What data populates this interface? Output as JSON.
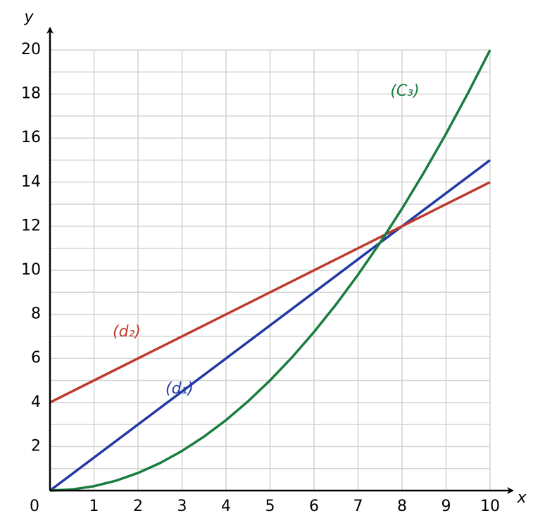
{
  "chart_data": {
    "type": "line",
    "x_label": "x",
    "y_label": "y",
    "xlim": [
      0,
      10
    ],
    "ylim": [
      0,
      20
    ],
    "xticks": [
      0,
      1,
      2,
      3,
      4,
      5,
      6,
      7,
      8,
      9,
      10
    ],
    "yticks": [
      2,
      4,
      6,
      8,
      10,
      12,
      14,
      16,
      18,
      20
    ],
    "y_minor_ticks": [
      1,
      3,
      5,
      7,
      9,
      11,
      13,
      15,
      17,
      19
    ],
    "grid": true,
    "series": [
      {
        "name": "(d₁)",
        "color": "#2139a5",
        "x": [
          0,
          10
        ],
        "values": [
          0,
          15
        ]
      },
      {
        "name": "(d₂)",
        "color": "#bf3a2e",
        "x": [
          0,
          10
        ],
        "values": [
          4,
          14
        ]
      },
      {
        "name": "(C₃)",
        "color": "#1a7d3e",
        "x": [
          0,
          0.5,
          1,
          1.5,
          2,
          2.5,
          3,
          3.5,
          4,
          4.5,
          5,
          5.5,
          6,
          6.5,
          7,
          7.5,
          8,
          8.5,
          9,
          9.5,
          10
        ],
        "values": [
          0,
          0.05,
          0.2,
          0.45,
          0.8,
          1.25,
          1.8,
          2.45,
          3.2,
          4.05,
          5,
          6.05,
          7.2,
          8.45,
          9.8,
          11.25,
          12.8,
          14.45,
          16.2,
          18.05,
          20
        ]
      }
    ]
  }
}
